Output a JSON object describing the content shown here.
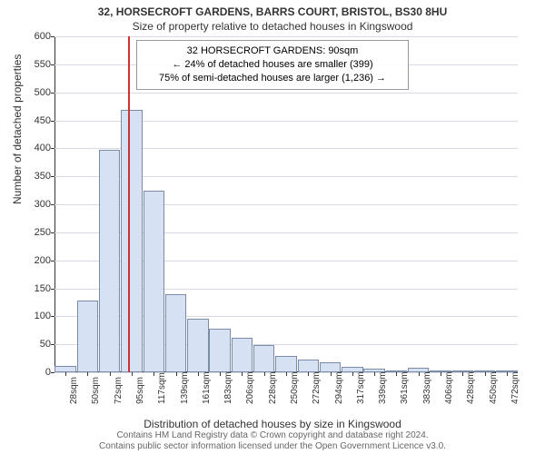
{
  "title": "32, HORSECROFT GARDENS, BARRS COURT, BRISTOL, BS30 8HU",
  "subtitle": "Size of property relative to detached houses in Kingswood",
  "annotation": {
    "line1": "32 HORSECROFT GARDENS: 90sqm",
    "line2": "← 24% of detached houses are smaller (399)",
    "line3": "75% of semi-detached houses are larger (1,236) →"
  },
  "chart": {
    "type": "histogram",
    "ylabel": "Number of detached properties",
    "xlabel": "Distribution of detached houses by size in Kingswood",
    "ylim": [
      0,
      600
    ],
    "ytick_step": 50,
    "x_categories": [
      "28sqm",
      "50sqm",
      "72sqm",
      "95sqm",
      "117sqm",
      "139sqm",
      "161sqm",
      "183sqm",
      "206sqm",
      "228sqm",
      "250sqm",
      "272sqm",
      "294sqm",
      "317sqm",
      "339sqm",
      "361sqm",
      "383sqm",
      "406sqm",
      "428sqm",
      "450sqm",
      "472sqm"
    ],
    "values": [
      12,
      128,
      398,
      468,
      325,
      140,
      95,
      78,
      62,
      48,
      30,
      22,
      18,
      10,
      6,
      3,
      8,
      2,
      0,
      0,
      2
    ],
    "bar_color": "#d6e2f3",
    "bar_border_color": "#7a8ca8",
    "grid_color": "#d9d9e6",
    "background_color": "#ffffff",
    "bar_width_ratio": 0.96,
    "reference_line_x_index": 2.85,
    "reference_line_color": "#cc3333",
    "label_fontsize": 12,
    "tick_fontsize": 11
  },
  "footer": {
    "line1": "Contains HM Land Registry data © Crown copyright and database right 2024.",
    "line2": "Contains public sector information licensed under the Open Government Licence v3.0."
  }
}
